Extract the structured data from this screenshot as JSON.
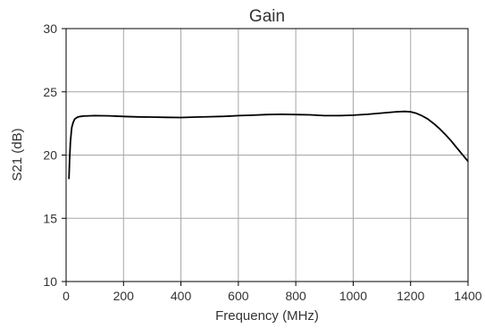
{
  "chart_data": {
    "type": "line",
    "title": "Gain",
    "xlabel": "Frequency (MHz)",
    "ylabel": "S21 (dB)",
    "xlim": [
      0,
      1400
    ],
    "ylim": [
      10,
      30
    ],
    "x_ticks": [
      0,
      200,
      400,
      600,
      800,
      1000,
      1200,
      1400
    ],
    "y_ticks": [
      10,
      15,
      20,
      25,
      30
    ],
    "grid": true,
    "legend": "none",
    "series": [
      {
        "color": "#000000",
        "x": [
          10,
          12,
          15,
          18,
          20,
          25,
          30,
          40,
          50,
          60,
          80,
          100,
          150,
          200,
          250,
          300,
          350,
          400,
          450,
          500,
          550,
          600,
          650,
          700,
          750,
          800,
          850,
          900,
          950,
          1000,
          1050,
          1100,
          1150,
          1180,
          1200,
          1220,
          1240,
          1260,
          1280,
          1300,
          1320,
          1340,
          1360,
          1380,
          1400
        ],
        "y": [
          18.1,
          19.6,
          21.0,
          21.8,
          22.2,
          22.6,
          22.85,
          23.0,
          23.05,
          23.08,
          23.1,
          23.12,
          23.1,
          23.05,
          23.02,
          23.0,
          22.98,
          22.97,
          23.0,
          23.03,
          23.06,
          23.12,
          23.15,
          23.2,
          23.22,
          23.2,
          23.18,
          23.12,
          23.12,
          23.15,
          23.22,
          23.32,
          23.42,
          23.45,
          23.42,
          23.3,
          23.1,
          22.85,
          22.5,
          22.1,
          21.65,
          21.15,
          20.6,
          20.05,
          19.5
        ]
      }
    ]
  }
}
